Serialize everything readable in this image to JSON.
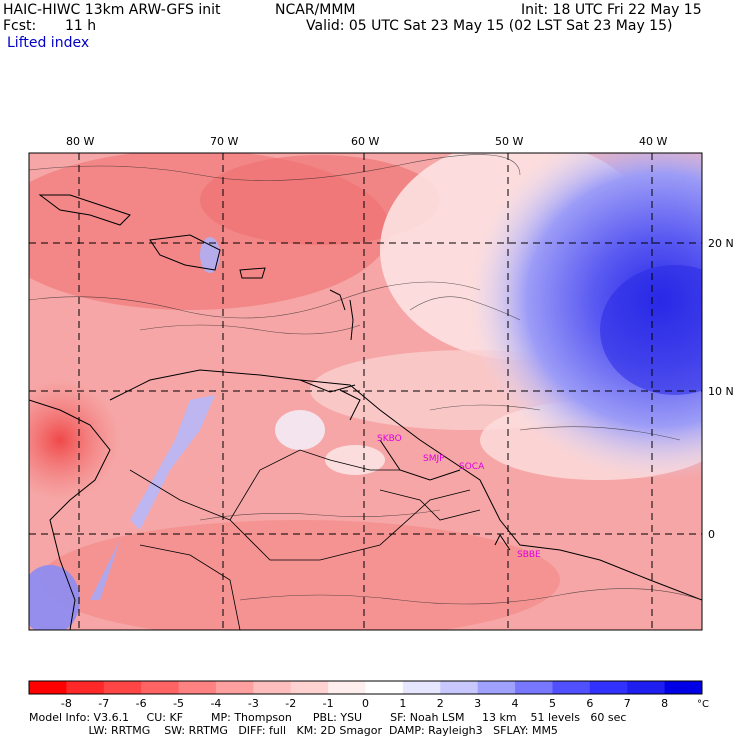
{
  "header": {
    "model": "HAIC-HIWC 13km ARW-GFS init",
    "org": "NCAR/MMM",
    "init": "Init: 18 UTC Fri 22 May 15",
    "fcst_label": "Fcst:",
    "fcst_value": "11 h",
    "valid": "Valid: 05 UTC Sat 23 May 15 (02 LST Sat 23 May 15)",
    "field": "Lifted index"
  },
  "map": {
    "lon_labels": [
      "80 W",
      "70 W",
      "60 W",
      "50 W",
      "40 W"
    ],
    "lat_labels": [
      "20 N",
      "10 N",
      "0"
    ],
    "stations": [
      "SKBO",
      "SMJP",
      "SOCA",
      "SBBE"
    ],
    "colors": {
      "background_warm": "#f7a0a0",
      "deep_red": "#f05050",
      "neutral": "#fdecec",
      "cool_blue": "#4040f0"
    }
  },
  "colorbar": {
    "labels": [
      "-8",
      "-7",
      "-6",
      "-5",
      "-4",
      "-3",
      "-2",
      "-1",
      "0",
      "1",
      "2",
      "3",
      "4",
      "5",
      "6",
      "7",
      "8"
    ],
    "unit": "°C",
    "colors": [
      "#ff0000",
      "#ff2828",
      "#ff4646",
      "#ff6464",
      "#ff8282",
      "#ffa0a0",
      "#ffbebe",
      "#ffd2d2",
      "#ffeeee",
      "#ffffff",
      "#e6e6ff",
      "#c8c8ff",
      "#a0a0ff",
      "#7878ff",
      "#5050ff",
      "#3232ff",
      "#1e1ef0",
      "#0000e6"
    ]
  },
  "footer": {
    "line1": "Model Info: V3.6.1     CU: KF        MP: Thompson      PBL: YSU        SF: Noah LSM     13 km    51 levels   60 sec",
    "line2": "                 LW: RRTMG    SW: RRTMG   DIFF: full   KM: 2D Smagor  DAMP: Rayleigh3   SFLAY: MM5"
  }
}
